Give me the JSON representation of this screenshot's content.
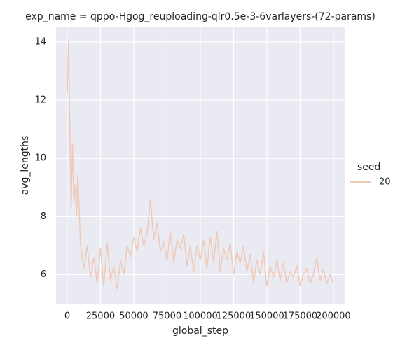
{
  "chart_data": {
    "type": "line",
    "title": "exp_name = qppo-Hgog_reuploading-qlr0.5e-3-6varlayers-(72-params)",
    "x_label": "global_step",
    "y_label": "avg_lengths",
    "legend_title": "seed",
    "x": [
      0,
      1000,
      2000,
      3000,
      4000,
      5000,
      6000,
      7000,
      8000,
      9000,
      10000,
      12500,
      15000,
      17500,
      20000,
      22500,
      25000,
      27500,
      30000,
      32500,
      35000,
      37500,
      40000,
      42500,
      45000,
      47500,
      50000,
      52500,
      55000,
      57500,
      60000,
      62500,
      65000,
      67500,
      70000,
      72500,
      75000,
      77500,
      80000,
      82500,
      85000,
      87500,
      90000,
      92500,
      95000,
      97500,
      100000,
      102500,
      105000,
      107500,
      110000,
      112500,
      115000,
      117500,
      120000,
      122500,
      125000,
      127500,
      130000,
      132500,
      135000,
      137500,
      140000,
      142500,
      145000,
      147500,
      150000,
      152500,
      155000,
      157500,
      160000,
      162500,
      165000,
      167500,
      170000,
      172500,
      175000,
      177500,
      180000,
      182500,
      185000,
      187500,
      190000,
      192500,
      195000,
      197500,
      200000
    ],
    "series": [
      {
        "name": "20",
        "color": "#f0c9b8",
        "values": [
          12.2,
          14.1,
          11.0,
          8.3,
          10.5,
          8.5,
          9.1,
          8.0,
          9.5,
          8.2,
          7.0,
          6.2,
          7.0,
          5.9,
          6.6,
          5.7,
          6.9,
          5.6,
          7.1,
          5.8,
          6.3,
          5.5,
          6.5,
          6.0,
          7.0,
          6.6,
          7.3,
          6.8,
          7.6,
          7.0,
          7.4,
          8.6,
          7.2,
          7.8,
          6.8,
          7.1,
          6.5,
          7.5,
          6.4,
          7.2,
          6.9,
          7.4,
          6.3,
          7.0,
          6.1,
          7.0,
          6.5,
          7.2,
          6.2,
          7.3,
          6.4,
          7.5,
          6.1,
          6.9,
          6.5,
          7.1,
          6.0,
          6.8,
          6.4,
          7.0,
          6.1,
          6.7,
          5.7,
          6.5,
          6.0,
          6.8,
          5.6,
          6.3,
          5.9,
          6.5,
          5.8,
          6.4,
          5.7,
          6.1,
          5.9,
          6.3,
          5.6,
          6.0,
          6.2,
          5.7,
          6.0,
          6.6,
          5.8,
          6.2,
          5.7,
          6.0,
          5.7
        ]
      }
    ],
    "xlim": [
      -8400,
      209000
    ],
    "ylim": [
      5.0,
      14.53
    ],
    "xticks": [
      0,
      25000,
      50000,
      75000,
      100000,
      125000,
      150000,
      175000,
      200000
    ],
    "yticks": [
      6,
      8,
      10,
      12,
      14
    ],
    "grid": true
  }
}
